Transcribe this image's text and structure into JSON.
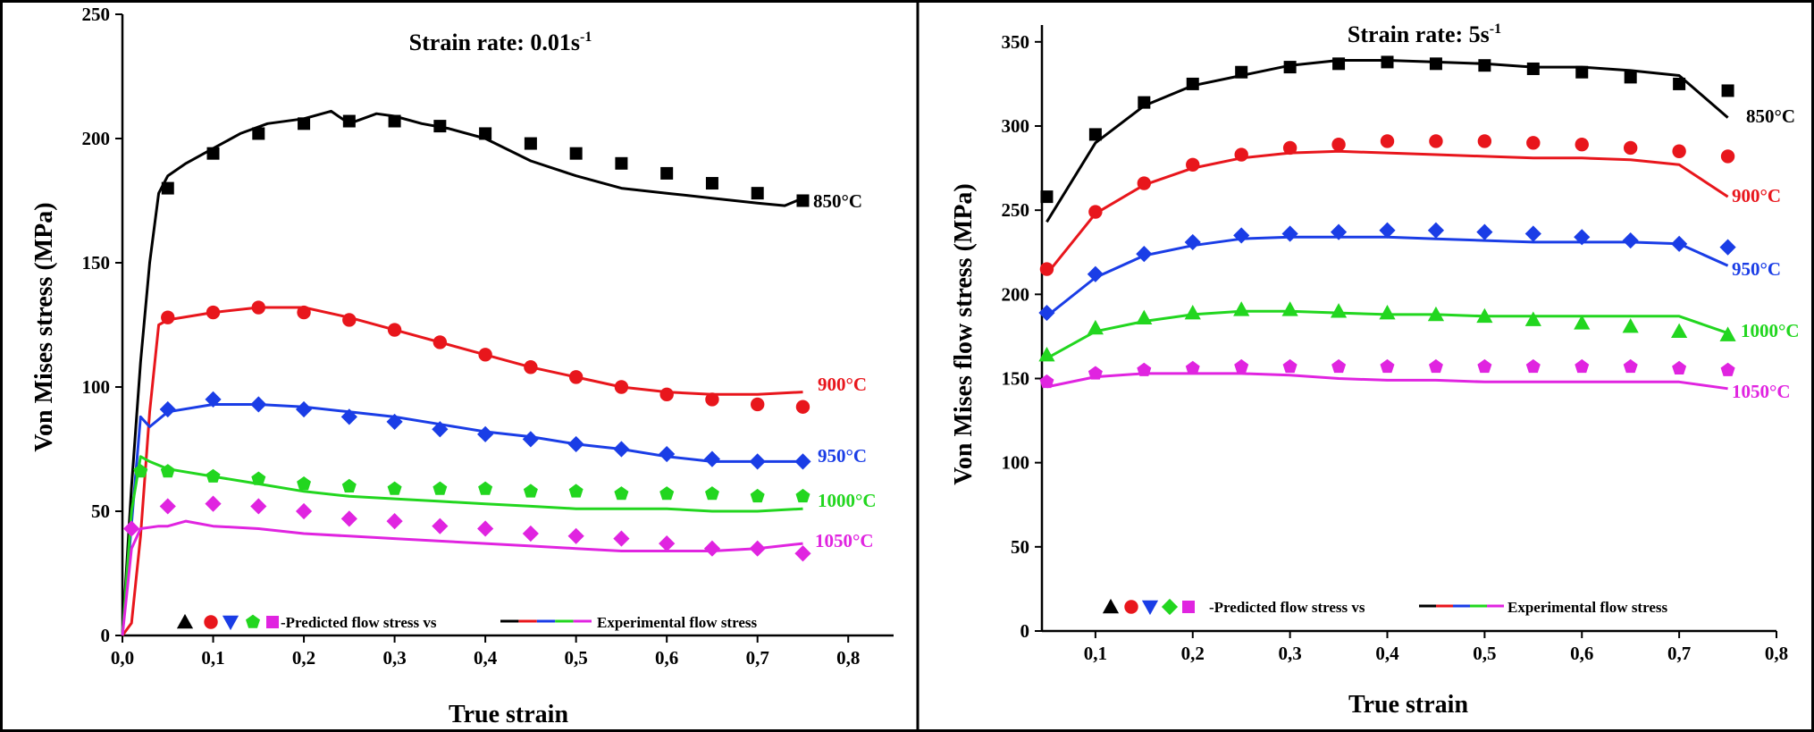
{
  "chart_data": [
    {
      "type": "line",
      "title": "Strain rate: 0.01s",
      "title_sup": "-1",
      "xlabel": "True strain",
      "ylabel": "Von Mises stress (MPa)",
      "xlim": [
        0,
        0.85
      ],
      "ylim": [
        0,
        250
      ],
      "xticks": [
        "0,0",
        "0,1",
        "0,2",
        "0,3",
        "0,4",
        "0,5",
        "0,6",
        "0,7",
        "0,8"
      ],
      "yticks": [
        "0",
        "50",
        "100",
        "150",
        "200",
        "250"
      ],
      "grid": false,
      "legend": {
        "position": "bottom-center",
        "predicted_text": "-Predicted flow stress vs",
        "experimental_text": "Experimental flow stress"
      },
      "series": [
        {
          "name": "850°C",
          "color": "#000000",
          "marker": "square",
          "experimental": {
            "x": [
              0.0,
              0.01,
              0.02,
              0.03,
              0.04,
              0.05,
              0.07,
              0.1,
              0.13,
              0.16,
              0.2,
              0.23,
              0.25,
              0.28,
              0.3,
              0.33,
              0.36,
              0.4,
              0.45,
              0.5,
              0.55,
              0.6,
              0.65,
              0.7,
              0.73,
              0.75
            ],
            "y": [
              0,
              60,
              110,
              150,
              178,
              185,
              190,
              196,
              202,
              206,
              208,
              211,
              206,
              210,
              209,
              206,
              204,
              200,
              191,
              185,
              180,
              178,
              176,
              174,
              173,
              176
            ]
          },
          "predicted": {
            "x": [
              0.05,
              0.1,
              0.15,
              0.2,
              0.25,
              0.3,
              0.35,
              0.4,
              0.45,
              0.5,
              0.55,
              0.6,
              0.65,
              0.7,
              0.75
            ],
            "y": [
              180,
              194,
              202,
              206,
              207,
              207,
              205,
              202,
              198,
              194,
              190,
              186,
              182,
              178,
              175
            ]
          }
        },
        {
          "name": "900°C",
          "color": "#e8161c",
          "marker": "circle",
          "experimental": {
            "x": [
              0.0,
              0.01,
              0.02,
              0.03,
              0.04,
              0.05,
              0.1,
              0.15,
              0.2,
              0.25,
              0.3,
              0.35,
              0.4,
              0.45,
              0.5,
              0.55,
              0.6,
              0.65,
              0.7,
              0.75
            ],
            "y": [
              0,
              5,
              40,
              90,
              125,
              127,
              130,
              132,
              132,
              128,
              123,
              118,
              113,
              108,
              104,
              100,
              98,
              97,
              97,
              98
            ]
          },
          "predicted": {
            "x": [
              0.05,
              0.1,
              0.15,
              0.2,
              0.25,
              0.3,
              0.35,
              0.4,
              0.45,
              0.5,
              0.55,
              0.6,
              0.65,
              0.7,
              0.75
            ],
            "y": [
              128,
              130,
              132,
              130,
              127,
              123,
              118,
              113,
              108,
              104,
              100,
              97,
              95,
              93,
              92
            ]
          }
        },
        {
          "name": "950°C",
          "color": "#1a3de6",
          "marker": "diamond",
          "experimental": {
            "x": [
              0.0,
              0.01,
              0.02,
              0.03,
              0.05,
              0.1,
              0.15,
              0.2,
              0.25,
              0.3,
              0.35,
              0.4,
              0.45,
              0.5,
              0.55,
              0.6,
              0.65,
              0.7,
              0.75
            ],
            "y": [
              0,
              45,
              88,
              84,
              90,
              93,
              93,
              92,
              90,
              88,
              85,
              82,
              80,
              77,
              75,
              72,
              70,
              70,
              70
            ]
          },
          "predicted": {
            "x": [
              0.05,
              0.1,
              0.15,
              0.2,
              0.25,
              0.3,
              0.35,
              0.4,
              0.45,
              0.5,
              0.55,
              0.6,
              0.65,
              0.7,
              0.75
            ],
            "y": [
              91,
              95,
              93,
              91,
              88,
              86,
              83,
              81,
              79,
              77,
              75,
              73,
              71,
              70,
              70
            ]
          }
        },
        {
          "name": "1000°C",
          "color": "#22d61f",
          "marker": "pentagon",
          "experimental": {
            "x": [
              0.0,
              0.01,
              0.02,
              0.03,
              0.05,
              0.1,
              0.15,
              0.2,
              0.25,
              0.3,
              0.35,
              0.4,
              0.45,
              0.5,
              0.55,
              0.6,
              0.65,
              0.7,
              0.75
            ],
            "y": [
              0,
              50,
              72,
              70,
              67,
              64,
              61,
              58,
              56,
              55,
              54,
              53,
              52,
              51,
              51,
              51,
              50,
              50,
              51
            ]
          },
          "predicted": {
            "x": [
              0.02,
              0.05,
              0.1,
              0.15,
              0.2,
              0.25,
              0.3,
              0.35,
              0.4,
              0.45,
              0.5,
              0.55,
              0.6,
              0.65,
              0.7,
              0.75
            ],
            "y": [
              66,
              66,
              64,
              63,
              61,
              60,
              59,
              59,
              59,
              58,
              58,
              57,
              57,
              57,
              56,
              56
            ]
          }
        },
        {
          "name": "1050°C",
          "color": "#e024e0",
          "marker": "diamond",
          "experimental": {
            "x": [
              0.0,
              0.01,
              0.02,
              0.04,
              0.05,
              0.07,
              0.1,
              0.15,
              0.2,
              0.25,
              0.3,
              0.35,
              0.4,
              0.45,
              0.5,
              0.55,
              0.6,
              0.65,
              0.7,
              0.75
            ],
            "y": [
              0,
              35,
              43,
              44,
              44,
              46,
              44,
              43,
              41,
              40,
              39,
              38,
              37,
              36,
              35,
              34,
              34,
              34,
              35,
              37
            ]
          },
          "predicted": {
            "x": [
              0.01,
              0.05,
              0.1,
              0.15,
              0.2,
              0.25,
              0.3,
              0.35,
              0.4,
              0.45,
              0.5,
              0.55,
              0.6,
              0.65,
              0.7,
              0.75
            ],
            "y": [
              43,
              52,
              53,
              52,
              50,
              47,
              46,
              44,
              43,
              41,
              40,
              39,
              37,
              35,
              35,
              33
            ]
          }
        }
      ]
    },
    {
      "type": "line",
      "title": "Strain rate: 5s",
      "title_sup": "-1",
      "xlabel": "True strain",
      "ylabel": "Von Mises flow stress (MPa)",
      "xlim": [
        0.045,
        0.8
      ],
      "ylim": [
        0,
        360
      ],
      "xticks": [
        "0,1",
        "0,2",
        "0,3",
        "0,4",
        "0,5",
        "0,6",
        "0,7",
        "0,8"
      ],
      "yticks": [
        "0",
        "50",
        "100",
        "150",
        "200",
        "250",
        "300",
        "350"
      ],
      "grid": false,
      "legend": {
        "position": "bottom-center",
        "predicted_text": "-Predicted flow stress vs",
        "experimental_text": "Experimental flow stress"
      },
      "series": [
        {
          "name": "850°C",
          "color": "#000000",
          "marker": "square",
          "experimental": {
            "x": [
              0.05,
              0.1,
              0.15,
              0.2,
              0.25,
              0.3,
              0.35,
              0.4,
              0.45,
              0.5,
              0.55,
              0.6,
              0.65,
              0.7,
              0.75
            ],
            "y": [
              243,
              290,
              312,
              324,
              330,
              336,
              339,
              339,
              338,
              337,
              335,
              335,
              333,
              330,
              305
            ]
          },
          "predicted": {
            "x": [
              0.05,
              0.1,
              0.15,
              0.2,
              0.25,
              0.3,
              0.35,
              0.4,
              0.45,
              0.5,
              0.55,
              0.6,
              0.65,
              0.7,
              0.75
            ],
            "y": [
              258,
              295,
              314,
              325,
              332,
              335,
              337,
              338,
              337,
              336,
              334,
              332,
              329,
              325,
              321
            ]
          }
        },
        {
          "name": "900°C",
          "color": "#e8161c",
          "marker": "circle",
          "experimental": {
            "x": [
              0.05,
              0.1,
              0.15,
              0.2,
              0.25,
              0.3,
              0.35,
              0.4,
              0.45,
              0.5,
              0.55,
              0.6,
              0.65,
              0.7,
              0.75
            ],
            "y": [
              212,
              248,
              265,
              275,
              281,
              284,
              285,
              284,
              283,
              282,
              281,
              281,
              280,
              277,
              258
            ]
          },
          "predicted": {
            "x": [
              0.05,
              0.1,
              0.15,
              0.2,
              0.25,
              0.3,
              0.35,
              0.4,
              0.45,
              0.5,
              0.55,
              0.6,
              0.65,
              0.7,
              0.75
            ],
            "y": [
              215,
              249,
              266,
              277,
              283,
              287,
              289,
              291,
              291,
              291,
              290,
              289,
              287,
              285,
              282
            ]
          }
        },
        {
          "name": "950°C",
          "color": "#1a3de6",
          "marker": "diamond",
          "experimental": {
            "x": [
              0.05,
              0.1,
              0.15,
              0.2,
              0.25,
              0.3,
              0.35,
              0.4,
              0.45,
              0.5,
              0.55,
              0.6,
              0.65,
              0.7,
              0.75
            ],
            "y": [
              187,
              210,
              223,
              229,
              233,
              234,
              234,
              234,
              233,
              232,
              231,
              231,
              231,
              230,
              217
            ]
          },
          "predicted": {
            "x": [
              0.05,
              0.1,
              0.15,
              0.2,
              0.25,
              0.3,
              0.35,
              0.4,
              0.45,
              0.5,
              0.55,
              0.6,
              0.65,
              0.7,
              0.75
            ],
            "y": [
              189,
              212,
              224,
              231,
              235,
              236,
              237,
              238,
              238,
              237,
              236,
              234,
              232,
              230,
              228
            ]
          }
        },
        {
          "name": "1000°C",
          "color": "#22d61f",
          "marker": "triangle",
          "experimental": {
            "x": [
              0.05,
              0.1,
              0.15,
              0.2,
              0.25,
              0.3,
              0.35,
              0.4,
              0.45,
              0.5,
              0.55,
              0.6,
              0.65,
              0.7,
              0.75
            ],
            "y": [
              162,
              178,
              184,
              188,
              190,
              190,
              189,
              188,
              188,
              187,
              187,
              187,
              187,
              187,
              177
            ]
          },
          "predicted": {
            "x": [
              0.05,
              0.1,
              0.15,
              0.2,
              0.25,
              0.3,
              0.35,
              0.4,
              0.45,
              0.5,
              0.55,
              0.6,
              0.65,
              0.7,
              0.75
            ],
            "y": [
              164,
              180,
              186,
              189,
              191,
              191,
              190,
              189,
              188,
              187,
              185,
              183,
              181,
              178,
              176
            ]
          }
        },
        {
          "name": "1050°C",
          "color": "#e024e0",
          "marker": "pentagon",
          "experimental": {
            "x": [
              0.05,
              0.1,
              0.15,
              0.2,
              0.25,
              0.3,
              0.35,
              0.4,
              0.45,
              0.5,
              0.55,
              0.6,
              0.65,
              0.7,
              0.75
            ],
            "y": [
              145,
              151,
              153,
              153,
              153,
              152,
              150,
              149,
              149,
              148,
              148,
              148,
              148,
              148,
              144
            ]
          },
          "predicted": {
            "x": [
              0.05,
              0.1,
              0.15,
              0.2,
              0.25,
              0.3,
              0.35,
              0.4,
              0.45,
              0.5,
              0.55,
              0.6,
              0.65,
              0.7,
              0.75
            ],
            "y": [
              148,
              153,
              155,
              156,
              157,
              157,
              157,
              157,
              157,
              157,
              157,
              157,
              157,
              156,
              155
            ]
          }
        }
      ]
    }
  ]
}
